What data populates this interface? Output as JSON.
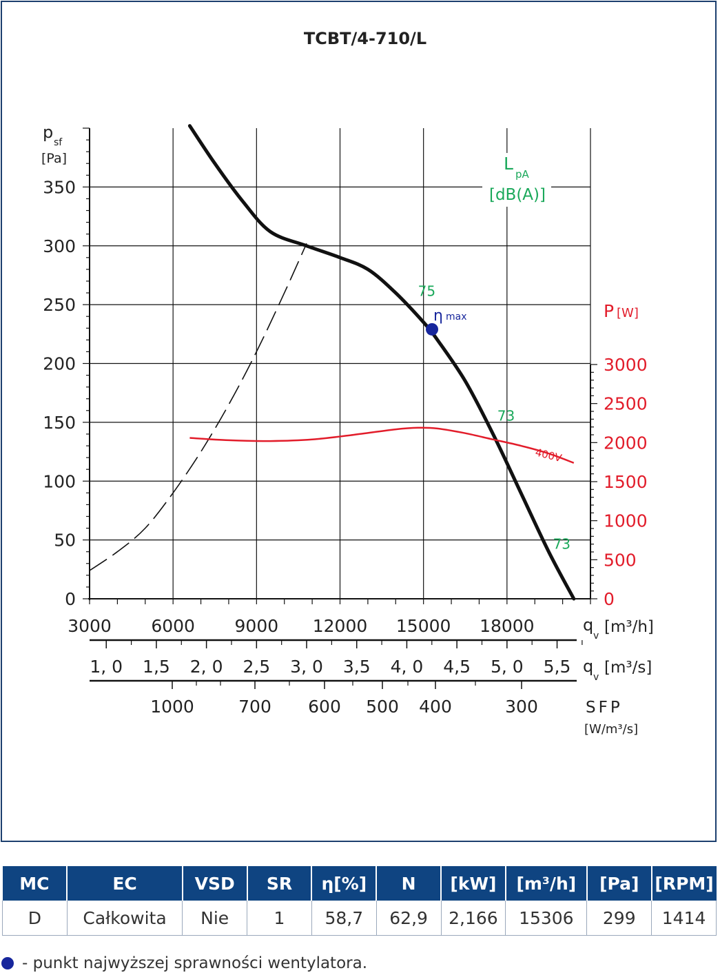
{
  "title": "TCBT/4-710/L",
  "legend_marker_text": "ηmax",
  "note_text": "- punkt najwyższej sprawności wentylatora.",
  "table": {
    "headers": [
      "MC",
      "EC",
      "VSD",
      "SR",
      "η[%]",
      "N",
      "[kW]",
      "[m³/h]",
      "[Pa]",
      "[RPM]"
    ],
    "rows": [
      [
        "D",
        "Całkowita",
        "Nie",
        "1",
        "58,7",
        "62,9",
        "2,166",
        "15306",
        "299",
        "1414"
      ]
    ]
  },
  "colors": {
    "accent": "#0f4481",
    "power": "#e21c2a",
    "noise": "#1aa85a",
    "eta": "#17269c",
    "curve": "#111111"
  },
  "chart_data": {
    "type": "line",
    "title": "TCBT/4-710/L",
    "x_axis": {
      "label_main": "q",
      "label_sub": "v",
      "label_unit": "[m³/h]",
      "range": [
        3000,
        21000
      ],
      "ticks": [
        3000,
        6000,
        9000,
        12000,
        15000,
        18000
      ],
      "tick_labels": [
        "3000",
        "6000",
        "9000",
        "12000",
        "15000",
        "18000"
      ]
    },
    "x_axis_m3s": {
      "label_main": "q",
      "label_sub": "v",
      "label_unit": "[m³/s]",
      "ticks": [
        1.0,
        1.5,
        2.0,
        2.5,
        3.0,
        3.5,
        4.0,
        4.5,
        5.0,
        5.5
      ],
      "tick_labels": [
        "1, 0",
        "1,5",
        "2, 0",
        "2,5",
        "3, 0",
        "3,5",
        "4, 0",
        "4,5",
        "5, 0",
        "5,5"
      ]
    },
    "sfp_axis": {
      "label": "SFP",
      "unit": "[W/m³/s]",
      "ticks": [
        1000,
        700,
        600,
        500,
        400,
        300
      ],
      "tick_labels": [
        "1000",
        "700",
        "600",
        "500",
        "400",
        "300"
      ]
    },
    "y_axis": {
      "label_main": "p",
      "label_sub": "sf",
      "unit": "[Pa]",
      "range": [
        0,
        400
      ],
      "ticks": [
        0,
        50,
        100,
        150,
        200,
        250,
        300,
        350
      ],
      "tick_labels": [
        "0",
        "50",
        "100",
        "150",
        "200",
        "250",
        "300",
        "350"
      ]
    },
    "y2_axis": {
      "label_main": "P",
      "unit": "[W]",
      "range": [
        0,
        3000
      ],
      "ticks": [
        0,
        500,
        1000,
        1500,
        2000,
        2500,
        3000
      ],
      "tick_labels": [
        "0",
        "500",
        "1000",
        "1500",
        "2000",
        "2500",
        "3000"
      ]
    },
    "noise_label": {
      "main": "L",
      "sub": "pA",
      "unit": "[dB(A)]"
    },
    "series": [
      {
        "kind": "pressure",
        "x": [
          6600,
          7500,
          8500,
          9500,
          10800,
          12000,
          13000,
          14000,
          15000,
          15500,
          16500,
          17500,
          18500,
          19500,
          20400
        ],
        "y": [
          402,
          370,
          338,
          312,
          300,
          290,
          280,
          260,
          235,
          220,
          185,
          140,
          90,
          40,
          0
        ]
      },
      {
        "kind": "system",
        "x": [
          3000,
          4000,
          5000,
          6000,
          7000,
          8000,
          9000,
          10000,
          10800
        ],
        "y": [
          24,
          40,
          60,
          90,
          125,
          165,
          210,
          260,
          302
        ]
      },
      {
        "kind": "power",
        "name": "400V",
        "x": [
          6600,
          8000,
          9500,
          11000,
          12500,
          14000,
          14800,
          15500,
          16500,
          17500,
          18500,
          19500,
          20400
        ],
        "y": [
          2060,
          2030,
          2020,
          2040,
          2100,
          2170,
          2190,
          2180,
          2120,
          2040,
          1960,
          1860,
          1740
        ]
      }
    ],
    "noise_markers": [
      {
        "label": "75",
        "x": 15050,
        "y": 255
      },
      {
        "label": "73",
        "x": 17900,
        "y": 149
      },
      {
        "label": "73",
        "x": 19900,
        "y": 40
      }
    ],
    "eta_max": {
      "label_eta": "η",
      "label_max": "max",
      "x": 15306,
      "y": 229
    },
    "grid": true
  }
}
